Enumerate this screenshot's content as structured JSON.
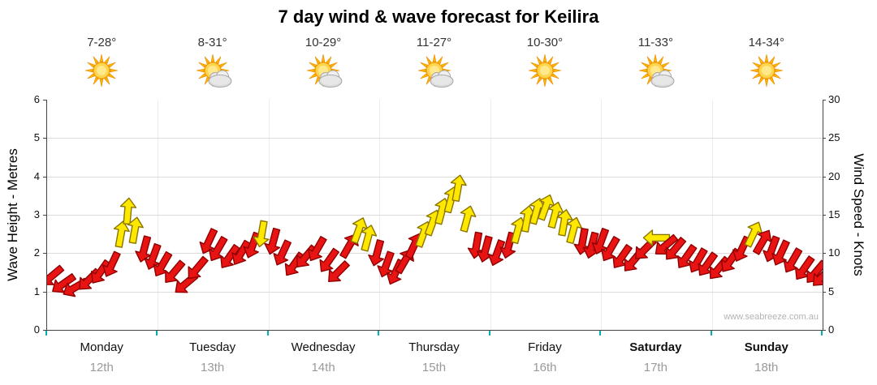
{
  "header": {
    "title": "7 day wind & wave forecast for Keilira"
  },
  "watermark": "www.seabreeze.com.au",
  "axes": {
    "left_label": "Wave Height - Metres",
    "right_label": "Wind Speed - Knots"
  },
  "chart_data": {
    "type": "scatter",
    "subtype": "wind-direction-arrows",
    "title": "7 day wind & wave forecast for Keilira",
    "x_axis": {
      "unit": "hours from start of Monday 12th",
      "range": [
        0,
        168
      ],
      "day_boundary_every_hours": 24
    },
    "y_axis_left": {
      "label": "Wave Height - Metres",
      "range": [
        0,
        6
      ],
      "ticks": [
        0,
        1,
        2,
        3,
        4,
        5,
        6
      ]
    },
    "y_axis_right": {
      "label": "Wind Speed - Knots",
      "range": [
        0,
        30
      ],
      "ticks": [
        0,
        5,
        10,
        15,
        20,
        25,
        30
      ]
    },
    "grid": "horizontal light grey at each metre, faint vertical at day boundaries",
    "legend": "none",
    "arrow_color_rule": {
      "red": "wind < 12 knots",
      "yellow": "wind >= 12 knots"
    },
    "yellow_threshold_knots": 12,
    "colors": {
      "red_fill": "#e81313",
      "red_stroke": "#8f0000",
      "yellow_fill": "#ffe800",
      "yellow_stroke": "#8a7400",
      "bottom_tick": "#00b2b2"
    },
    "days": [
      {
        "name": "Monday",
        "date": "12th",
        "temp": "7-28°",
        "icon": "sunny",
        "bold": false
      },
      {
        "name": "Tuesday",
        "date": "13th",
        "temp": "8-31°",
        "icon": "partly-cloudy",
        "bold": false
      },
      {
        "name": "Wednesday",
        "date": "14th",
        "temp": "10-29°",
        "icon": "partly-cloudy",
        "bold": false
      },
      {
        "name": "Thursday",
        "date": "15th",
        "temp": "11-27°",
        "icon": "partly-cloudy",
        "bold": false
      },
      {
        "name": "Friday",
        "date": "16th",
        "temp": "10-30°",
        "icon": "sunny",
        "bold": false
      },
      {
        "name": "Saturday",
        "date": "17th",
        "temp": "11-33°",
        "icon": "partly-cloudy",
        "bold": true
      },
      {
        "name": "Sunday",
        "date": "18th",
        "temp": "14-34°",
        "icon": "sunny",
        "bold": true
      }
    ],
    "point_format": [
      "hour",
      "wind_knots",
      "direction_deg_0_is_up_clockwise"
    ],
    "points": [
      [
        0,
        7,
        230
      ],
      [
        2.5,
        6,
        235
      ],
      [
        5,
        5.5,
        240
      ],
      [
        8,
        6.5,
        225
      ],
      [
        10.5,
        7.5,
        215
      ],
      [
        13,
        8.5,
        205
      ],
      [
        15,
        12.5,
        10
      ],
      [
        16.5,
        15.5,
        5
      ],
      [
        18,
        13,
        10
      ],
      [
        20,
        10.5,
        195
      ],
      [
        22,
        9.5,
        200
      ],
      [
        24,
        8.5,
        210
      ],
      [
        26.5,
        7.5,
        220
      ],
      [
        29,
        6,
        230
      ],
      [
        31.5,
        8,
        220
      ],
      [
        34,
        11.5,
        205
      ],
      [
        36,
        10.5,
        210
      ],
      [
        38.5,
        9.5,
        215
      ],
      [
        41,
        10,
        210
      ],
      [
        43.5,
        11,
        200
      ],
      [
        45.5,
        12.5,
        190
      ],
      [
        48,
        11.5,
        195
      ],
      [
        50,
        10,
        205
      ],
      [
        52.5,
        8.5,
        215
      ],
      [
        55,
        9.5,
        220
      ],
      [
        57.5,
        10.5,
        210
      ],
      [
        60,
        9,
        215
      ],
      [
        62,
        7.5,
        225
      ],
      [
        64.5,
        11,
        30
      ],
      [
        66.5,
        13,
        20
      ],
      [
        68.5,
        12,
        15
      ],
      [
        70.5,
        10,
        195
      ],
      [
        72.5,
        8.5,
        200
      ],
      [
        74.5,
        7.5,
        205
      ],
      [
        76.5,
        9,
        30
      ],
      [
        78.5,
        11,
        25
      ],
      [
        80.5,
        12.5,
        20
      ],
      [
        82.5,
        14,
        20
      ],
      [
        84.5,
        15.5,
        15
      ],
      [
        86.5,
        17,
        15
      ],
      [
        88,
        18.5,
        10
      ],
      [
        90,
        14.5,
        15
      ],
      [
        92,
        11,
        190
      ],
      [
        94,
        10.5,
        195
      ],
      [
        96.5,
        10,
        200
      ],
      [
        99,
        11,
        195
      ],
      [
        101,
        13,
        15
      ],
      [
        103,
        14.5,
        10
      ],
      [
        105,
        15.5,
        15
      ],
      [
        107,
        16,
        20
      ],
      [
        109,
        15,
        15
      ],
      [
        111,
        14,
        10
      ],
      [
        113,
        13,
        15
      ],
      [
        115,
        11.5,
        190
      ],
      [
        117,
        11,
        195
      ],
      [
        119,
        11.5,
        200
      ],
      [
        121,
        10.5,
        210
      ],
      [
        123.5,
        9.5,
        215
      ],
      [
        126,
        9,
        220
      ],
      [
        128.5,
        10.5,
        225
      ],
      [
        131,
        12,
        270
      ],
      [
        133,
        11,
        230
      ],
      [
        135,
        10.5,
        220
      ],
      [
        137.5,
        9.5,
        215
      ],
      [
        140,
        9,
        210
      ],
      [
        142,
        8.5,
        215
      ],
      [
        144.5,
        8,
        220
      ],
      [
        147,
        9,
        215
      ],
      [
        149.5,
        10.5,
        205
      ],
      [
        152,
        12.5,
        25
      ],
      [
        154,
        11.5,
        30
      ],
      [
        156,
        10.5,
        200
      ],
      [
        158,
        10,
        205
      ],
      [
        160.5,
        9,
        210
      ],
      [
        163,
        8,
        215
      ],
      [
        165.5,
        7.5,
        220
      ],
      [
        167,
        7,
        225
      ]
    ]
  }
}
